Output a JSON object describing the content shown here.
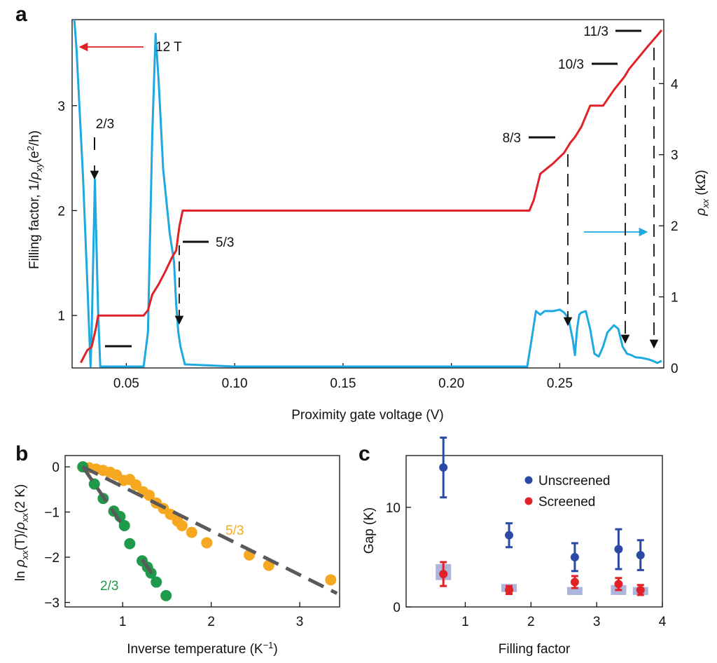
{
  "chart_data": [
    {
      "panel": "a",
      "type": "line",
      "xlabel": "Proximity gate voltage (V)",
      "ylabel_left": {
        "pre": "Filling factor, 1/",
        "rho": "ρ",
        "sub": "xy",
        "mid": "(e",
        "sup": "2",
        "post": "/h)"
      },
      "ylabel_right": {
        "rho": "ρ",
        "sub": "xx",
        "post": " (kΩ)"
      },
      "xlim": [
        0.025,
        0.298
      ],
      "ylim_left": [
        0.5,
        3.82
      ],
      "ylim_right": [
        0,
        4.9
      ],
      "x_ticks": [
        "0.05",
        "0.10",
        "0.15",
        "0.20",
        "0.25"
      ],
      "y_left_ticks": [
        "1",
        "2",
        "3"
      ],
      "y_right_ticks": [
        "0",
        "1",
        "2",
        "3",
        "4"
      ],
      "field_label": "12 T",
      "annotations": [
        "2/3",
        "5/3",
        "8/3",
        "10/3",
        "11/3"
      ],
      "series": [
        {
          "axis": "left",
          "color": "#e02228",
          "x": [
            0.029,
            0.032,
            0.034,
            0.036,
            0.037,
            0.05,
            0.058,
            0.06,
            0.062,
            0.065,
            0.068,
            0.071,
            0.073,
            0.0745,
            0.076,
            0.1,
            0.15,
            0.2,
            0.236,
            0.238,
            0.241,
            0.247,
            0.252,
            0.255,
            0.257,
            0.26,
            0.264,
            0.266,
            0.27,
            0.275,
            0.28,
            0.282,
            0.284,
            0.29,
            0.295,
            0.297
          ],
          "y": [
            0.55,
            0.67,
            0.7,
            0.88,
            1.0,
            1.0,
            1.0,
            1.05,
            1.2,
            1.3,
            1.42,
            1.55,
            1.62,
            1.85,
            2.0,
            2.0,
            2.0,
            2.0,
            2.0,
            2.1,
            2.35,
            2.45,
            2.55,
            2.65,
            2.7,
            2.8,
            3.0,
            3.0,
            3.0,
            3.15,
            3.28,
            3.35,
            3.4,
            3.55,
            3.67,
            3.72
          ]
        },
        {
          "axis": "right",
          "color": "#1ea9e1",
          "x": [
            0.026,
            0.027,
            0.028,
            0.03,
            0.032,
            0.0335,
            0.034,
            0.0355,
            0.037,
            0.038,
            0.05,
            0.058,
            0.06,
            0.062,
            0.0635,
            0.065,
            0.067,
            0.07,
            0.072,
            0.073,
            0.074,
            0.075,
            0.077,
            0.1,
            0.15,
            0.2,
            0.235,
            0.237,
            0.239,
            0.241,
            0.243,
            0.247,
            0.25,
            0.252,
            0.254,
            0.256,
            0.257,
            0.258,
            0.259,
            0.26,
            0.262,
            0.264,
            0.266,
            0.268,
            0.27,
            0.272,
            0.275,
            0.277,
            0.279,
            0.281,
            0.283,
            0.285,
            0.288,
            0.291,
            0.293,
            0.295,
            0.297
          ],
          "y": [
            4.9,
            4.5,
            3.9,
            2.7,
            1.2,
            0.02,
            0.5,
            2.65,
            0.8,
            0.02,
            0.02,
            0.02,
            0.5,
            3.3,
            4.7,
            4.0,
            2.8,
            1.9,
            1.5,
            0.9,
            0.5,
            0.3,
            0.05,
            0.02,
            0.02,
            0.02,
            0.02,
            0.4,
            0.8,
            0.75,
            0.8,
            0.8,
            0.82,
            0.78,
            0.7,
            0.4,
            0.18,
            0.55,
            0.75,
            0.78,
            0.8,
            0.55,
            0.2,
            0.16,
            0.3,
            0.5,
            0.6,
            0.55,
            0.3,
            0.2,
            0.18,
            0.15,
            0.14,
            0.12,
            0.1,
            0.07,
            0.1
          ]
        }
      ]
    },
    {
      "panel": "b",
      "type": "scatter",
      "xlabel": {
        "pre": "Inverse temperature (K",
        "sup": "−1",
        "post": ")"
      },
      "ylabel": {
        "pre": "ln ",
        "rho": "ρ",
        "sub": "xx",
        "mid": "(T)/",
        "rho2": "ρ",
        "sub2": "xx",
        "post": "(2 K)"
      },
      "xlim": [
        0.35,
        3.45
      ],
      "ylim": [
        -3.1,
        0.25
      ],
      "x_ticks": [
        "1",
        "2",
        "3"
      ],
      "y_ticks": [
        "0",
        "−1",
        "−2",
        "−3"
      ],
      "series": [
        {
          "name": "5/3",
          "color": "#f6a821",
          "x": [
            0.55,
            0.62,
            0.7,
            0.78,
            0.86,
            0.93,
            1.01,
            1.08,
            1.15,
            1.23,
            1.3,
            1.38,
            1.46,
            1.54,
            1.62,
            1.67,
            1.78,
            1.95,
            2.43,
            2.65,
            3.35
          ],
          "y": [
            0.0,
            -0.02,
            -0.05,
            -0.08,
            -0.12,
            -0.18,
            -0.3,
            -0.28,
            -0.4,
            -0.55,
            -0.63,
            -0.8,
            -0.92,
            -1.05,
            -1.2,
            -1.3,
            -1.45,
            -1.68,
            -1.95,
            -2.18,
            -2.5
          ],
          "fit": {
            "x": [
              0.55,
              3.42
            ],
            "y": [
              0.0,
              -2.8
            ]
          }
        },
        {
          "name": "2/3",
          "color": "#1f9a4a",
          "x": [
            0.55,
            0.68,
            0.78,
            0.9,
            0.97,
            1.02,
            1.08,
            1.22,
            1.28,
            1.32,
            1.38,
            1.49
          ],
          "y": [
            0.0,
            -0.38,
            -0.7,
            -0.98,
            -1.1,
            -1.3,
            -1.7,
            -2.08,
            -2.22,
            -2.35,
            -2.55,
            -2.85
          ],
          "fits": [
            {
              "x": [
                0.55,
                1.02
              ],
              "y": [
                0.0,
                -1.35
              ]
            },
            {
              "x": [
                1.22,
                1.38
              ],
              "y": [
                -2.05,
                -2.5
              ]
            }
          ]
        }
      ]
    },
    {
      "panel": "c",
      "type": "scatter",
      "xlabel": "Filling factor",
      "ylabel": "Gap (K)",
      "xlim": [
        0.1,
        4.0
      ],
      "ylim": [
        0,
        15.2
      ],
      "x_ticks": [
        "1",
        "2",
        "3",
        "4"
      ],
      "y_ticks": [
        "0",
        "10"
      ],
      "legend_position": "top-right",
      "series": [
        {
          "name": "Unscreened",
          "color": "#2b4aa6",
          "x": [
            0.667,
            1.667,
            2.667,
            3.333,
            3.667
          ],
          "y": [
            14.0,
            7.2,
            5.0,
            5.8,
            5.2
          ],
          "err": [
            3.0,
            1.2,
            1.4,
            2.0,
            1.5
          ]
        },
        {
          "name": "Screened",
          "color": "#e02228",
          "x": [
            0.667,
            1.667,
            2.667,
            3.333,
            3.667
          ],
          "y": [
            3.3,
            1.7,
            2.5,
            2.3,
            1.7
          ],
          "err": [
            1.2,
            0.4,
            0.6,
            0.6,
            0.5
          ]
        },
        {
          "name": "",
          "type": "band",
          "color": "#9ea8d6",
          "x": [
            0.667,
            1.667,
            2.667,
            3.333,
            3.667
          ],
          "y": [
            3.5,
            1.9,
            1.6,
            1.7,
            1.6
          ],
          "halfheight": [
            0.8,
            0.4,
            0.4,
            0.5,
            0.4
          ]
        }
      ]
    }
  ]
}
